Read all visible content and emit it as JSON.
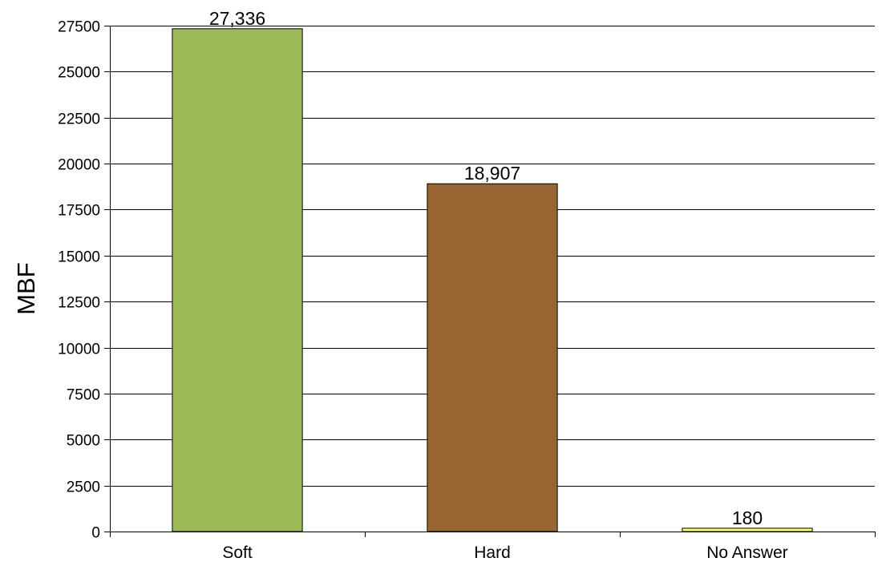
{
  "chart_data": {
    "type": "bar",
    "categories": [
      "Soft",
      "Hard",
      "No Answer"
    ],
    "values": [
      27336,
      18907,
      180
    ],
    "data_labels": [
      "27,336",
      "18,907",
      "180"
    ],
    "title": "",
    "xlabel": "",
    "ylabel": "MBF",
    "ylim": [
      0,
      27500
    ],
    "yticks": [
      0,
      2500,
      5000,
      7500,
      10000,
      12500,
      15000,
      17500,
      20000,
      22500,
      25000,
      27500
    ],
    "ytick_labels": [
      "0",
      "2500",
      "5000",
      "7500",
      "10000",
      "12500",
      "15000",
      "17500",
      "20000",
      "22500",
      "25000",
      "27500"
    ],
    "grid": true,
    "legend": "none",
    "colors": [
      "#9bbb59",
      "#996633",
      "#ffff66"
    ],
    "edge_color": "#000000"
  }
}
